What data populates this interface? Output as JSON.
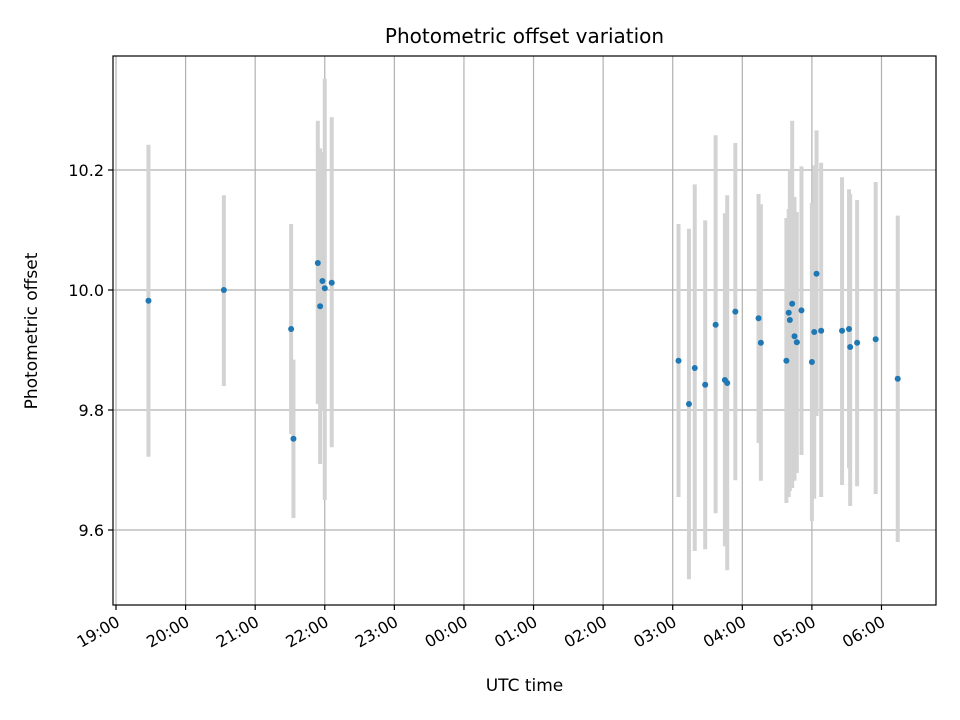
{
  "chart_data": {
    "type": "scatter",
    "title": "Photometric offset variation",
    "xlabel": "UTC time",
    "ylabel": "Photometric offset",
    "x_ticks": [
      "19:00",
      "20:00",
      "21:00",
      "22:00",
      "23:00",
      "00:00",
      "01:00",
      "02:00",
      "03:00",
      "04:00",
      "05:00",
      "06:00"
    ],
    "y_ticks": [
      "9.6",
      "9.8",
      "10.0",
      "10.2"
    ],
    "xlim": [
      "19:00",
      "06:47"
    ],
    "ylim": [
      9.475,
      10.39
    ],
    "grid": true,
    "error_bar_color": "#d3d3d3",
    "point_color": "#1f77b4",
    "points": [
      {
        "x": "19:28",
        "y": 9.982,
        "low": 9.722,
        "high": 10.242
      },
      {
        "x": "20:33",
        "y": 10.0,
        "low": 9.84,
        "high": 10.158
      },
      {
        "x": "21:31",
        "y": 9.935,
        "low": 9.76,
        "high": 10.11
      },
      {
        "x": "21:33",
        "y": 9.752,
        "low": 9.62,
        "high": 9.884
      },
      {
        "x": "21:54",
        "y": 10.045,
        "low": 9.81,
        "high": 10.282
      },
      {
        "x": "21:56",
        "y": 9.973,
        "low": 9.71,
        "high": 10.236
      },
      {
        "x": "21:58",
        "y": 10.015,
        "low": 9.8,
        "high": 10.23
      },
      {
        "x": "22:00",
        "y": 10.003,
        "low": 9.65,
        "high": 10.352
      },
      {
        "x": "22:06",
        "y": 10.012,
        "low": 9.738,
        "high": 10.288
      },
      {
        "x": "03:05",
        "y": 9.882,
        "low": 9.655,
        "high": 10.11
      },
      {
        "x": "03:14",
        "y": 9.81,
        "low": 9.518,
        "high": 10.102
      },
      {
        "x": "03:19",
        "y": 9.87,
        "low": 9.565,
        "high": 10.176
      },
      {
        "x": "03:28",
        "y": 9.842,
        "low": 9.568,
        "high": 10.116
      },
      {
        "x": "03:37",
        "y": 9.942,
        "low": 9.628,
        "high": 10.258
      },
      {
        "x": "03:45",
        "y": 9.85,
        "low": 9.573,
        "high": 10.128
      },
      {
        "x": "03:47",
        "y": 9.845,
        "low": 9.533,
        "high": 10.158
      },
      {
        "x": "03:54",
        "y": 9.964,
        "low": 9.683,
        "high": 10.245
      },
      {
        "x": "04:14",
        "y": 9.953,
        "low": 9.745,
        "high": 10.16
      },
      {
        "x": "04:16",
        "y": 9.912,
        "low": 9.682,
        "high": 10.143
      },
      {
        "x": "04:38",
        "y": 9.882,
        "low": 9.645,
        "high": 10.12
      },
      {
        "x": "04:40",
        "y": 9.962,
        "low": 9.655,
        "high": 10.135
      },
      {
        "x": "04:41",
        "y": 9.95,
        "low": 9.665,
        "high": 10.2
      },
      {
        "x": "04:43",
        "y": 9.977,
        "low": 9.67,
        "high": 10.282
      },
      {
        "x": "04:45",
        "y": 9.923,
        "low": 9.682,
        "high": 10.155
      },
      {
        "x": "04:47",
        "y": 9.913,
        "low": 9.695,
        "high": 10.13
      },
      {
        "x": "04:51",
        "y": 9.966,
        "low": 9.725,
        "high": 10.206
      },
      {
        "x": "05:00",
        "y": 9.88,
        "low": 9.615,
        "high": 10.145
      },
      {
        "x": "05:02",
        "y": 9.93,
        "low": 9.652,
        "high": 10.208
      },
      {
        "x": "05:04",
        "y": 10.027,
        "low": 9.79,
        "high": 10.266
      },
      {
        "x": "05:08",
        "y": 9.932,
        "low": 9.655,
        "high": 10.212
      },
      {
        "x": "05:26",
        "y": 9.932,
        "low": 9.675,
        "high": 10.188
      },
      {
        "x": "05:32",
        "y": 9.935,
        "low": 9.703,
        "high": 10.168
      },
      {
        "x": "05:33",
        "y": 9.905,
        "low": 9.64,
        "high": 10.16
      },
      {
        "x": "05:39",
        "y": 9.912,
        "low": 9.673,
        "high": 10.15
      },
      {
        "x": "05:55",
        "y": 9.918,
        "low": 9.66,
        "high": 10.18
      },
      {
        "x": "06:14",
        "y": 9.852,
        "low": 9.58,
        "high": 10.124
      }
    ]
  }
}
